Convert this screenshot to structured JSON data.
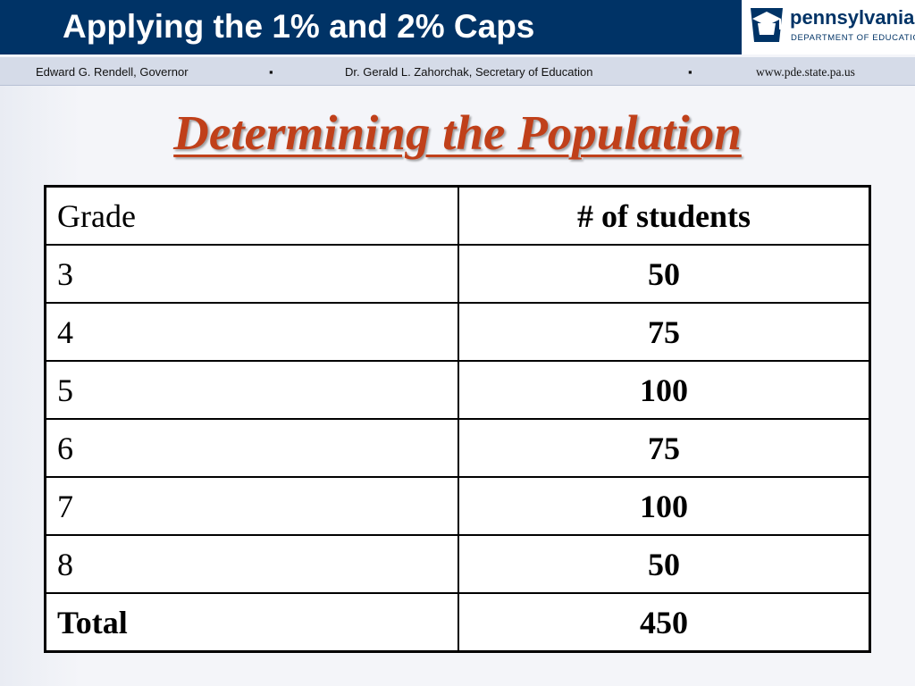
{
  "header": {
    "title": "Applying the 1% and 2% Caps",
    "logo": {
      "name": "pennsylvania",
      "subtitle": "DEPARTMENT OF EDUCATION"
    }
  },
  "subheader": {
    "governor": "Edward G. Rendell, Governor",
    "separator": "▪",
    "secretary": "Dr. Gerald L. Zahorchak, Secretary of Education",
    "website": "www.pde.state.pa.us"
  },
  "slide": {
    "heading": "Determining the Population"
  },
  "table": {
    "columns": [
      "Grade",
      "# of students"
    ],
    "rows": [
      {
        "grade": "3",
        "count": "50"
      },
      {
        "grade": "4",
        "count": "75"
      },
      {
        "grade": "5",
        "count": "100"
      },
      {
        "grade": "6",
        "count": "75"
      },
      {
        "grade": "7",
        "count": "100"
      },
      {
        "grade": "8",
        "count": "50"
      }
    ],
    "total": {
      "label": "Total",
      "count": "450"
    }
  },
  "colors": {
    "header_bar": "#003366",
    "heading": "#c0401a",
    "subheader_bar": "#d5dbe8"
  }
}
